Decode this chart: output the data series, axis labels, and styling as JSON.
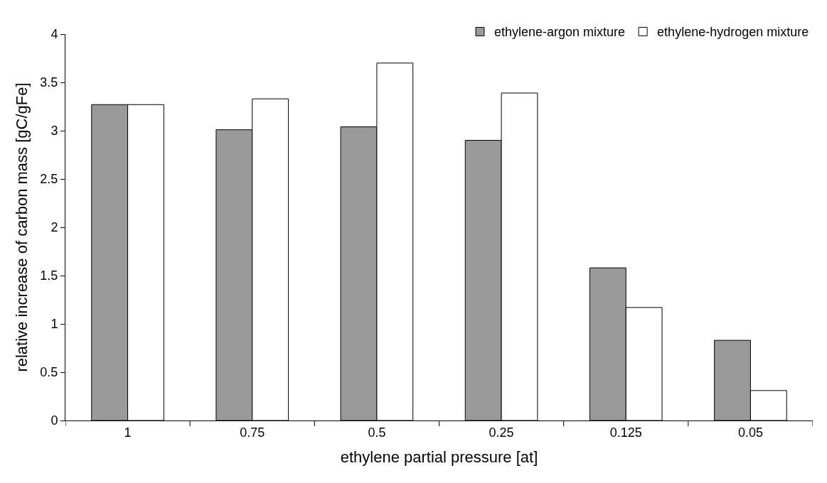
{
  "chart_data": {
    "type": "bar",
    "xlabel": "ethylene partial pressure [at]",
    "ylabel": "relative increase of carbon mass [gC/gFe]",
    "categories": [
      "1",
      "0.75",
      "0.5",
      "0.25",
      "0.125",
      "0.05"
    ],
    "series": [
      {
        "name": "ethylene-argon mixture",
        "color": "#9a9a9a",
        "values": [
          3.27,
          3.01,
          3.04,
          2.9,
          1.58,
          0.83
        ]
      },
      {
        "name": "ethylene-hydrogen mixture",
        "color": "#ffffff",
        "values": [
          3.27,
          3.33,
          3.7,
          3.39,
          1.17,
          0.31
        ]
      }
    ],
    "ylim": [
      0,
      4
    ],
    "yticks": [
      0,
      0.5,
      1,
      1.5,
      2,
      2.5,
      3,
      3.5,
      4
    ],
    "grid": false,
    "legend": "top right"
  }
}
